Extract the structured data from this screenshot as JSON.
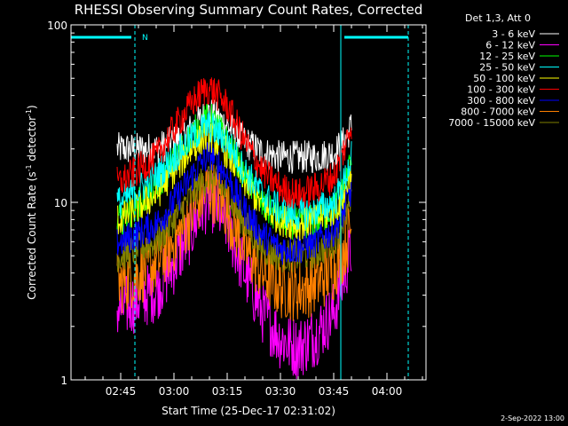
{
  "chart_data": {
    "type": "line",
    "title": "RHESSI Observing Summary Count Rates, Corrected",
    "xlabel": "Start Time (25-Dec-17 02:31:02)",
    "ylabel": "Corrected Count Rate (s⁻¹ detector⁻¹)",
    "ylabel_parts": {
      "main": "Corrected Count Rate (s",
      "sup1": "-1",
      "mid": " detector",
      "sup2": "-1",
      "end": ")"
    },
    "yscale": "log",
    "ylim": [
      1,
      100
    ],
    "xlim": [
      "02:31",
      "04:11"
    ],
    "x_ticks": [
      "02:45",
      "03:00",
      "03:15",
      "03:30",
      "03:45",
      "04:00"
    ],
    "y_ticks": [
      "1",
      "10",
      "100"
    ],
    "legend_title": "Det 1,3, Att 0",
    "legend_placement": "top-right outside",
    "data_window": {
      "start": "02:44",
      "end": "03:50"
    },
    "flags": {
      "bar_color": "#00ffff",
      "bars": [
        {
          "start": "02:31",
          "end": "02:48"
        },
        {
          "start": "03:48",
          "end": "04:06"
        }
      ],
      "night_solid": [
        "02:31",
        "03:47"
      ],
      "night_dashed": [
        "02:49",
        "04:06"
      ],
      "label": "N",
      "label_at": "02:50"
    },
    "timestamp": "2-Sep-2022 13:00",
    "series": [
      {
        "name": "3 - 6 keV",
        "color": "#ffffff",
        "x": [
          "02:45",
          "02:55",
          "03:00",
          "03:05",
          "03:08",
          "03:10",
          "03:12",
          "03:15",
          "03:20",
          "03:25",
          "03:30",
          "03:35",
          "03:40",
          "03:45",
          "03:48",
          "03:50"
        ],
        "values": [
          20,
          20,
          22,
          26,
          30,
          32,
          30,
          27,
          22,
          19,
          18,
          18,
          18,
          19,
          22,
          27
        ]
      },
      {
        "name": "6 - 12 keV",
        "color": "#ff00ff",
        "x": [
          "02:45",
          "02:55",
          "03:00",
          "03:05",
          "03:08",
          "03:10",
          "03:12",
          "03:15",
          "03:20",
          "03:25",
          "03:30",
          "03:35",
          "03:40",
          "03:45",
          "03:48",
          "03:50"
        ],
        "values": [
          2.5,
          3.2,
          4.5,
          7,
          9.5,
          10.5,
          9.5,
          7.5,
          4,
          2.4,
          1.7,
          1.5,
          1.8,
          2.4,
          4,
          5.5
        ]
      },
      {
        "name": "12 - 25 keV",
        "color": "#00ff00",
        "x": [
          "02:45",
          "02:55",
          "03:00",
          "03:05",
          "03:08",
          "03:10",
          "03:12",
          "03:15",
          "03:20",
          "03:25",
          "03:30",
          "03:35",
          "03:40",
          "03:45",
          "03:48",
          "03:50"
        ],
        "values": [
          8,
          12,
          17,
          24,
          28,
          30,
          27,
          22,
          14,
          9.5,
          8,
          7.5,
          8,
          9,
          12,
          18
        ]
      },
      {
        "name": "25 - 50 keV",
        "color": "#00ffff",
        "x": [
          "02:45",
          "02:55",
          "03:00",
          "03:05",
          "03:08",
          "03:10",
          "03:12",
          "03:15",
          "03:20",
          "03:25",
          "03:30",
          "03:35",
          "03:40",
          "03:45",
          "03:48",
          "03:50"
        ],
        "values": [
          10,
          14,
          18,
          23,
          26,
          27,
          25,
          22,
          15,
          11,
          9,
          8.5,
          9,
          10,
          13,
          18
        ]
      },
      {
        "name": "50 - 100 keV",
        "color": "#ffff00",
        "x": [
          "02:45",
          "02:55",
          "03:00",
          "03:05",
          "03:08",
          "03:10",
          "03:12",
          "03:15",
          "03:20",
          "03:25",
          "03:30",
          "03:35",
          "03:40",
          "03:45",
          "03:48",
          "03:50"
        ],
        "values": [
          8,
          11,
          15,
          20,
          23,
          24,
          22,
          19,
          13,
          9.5,
          8,
          7.5,
          8,
          9,
          11,
          16
        ]
      },
      {
        "name": "100 - 300 keV",
        "color": "#ff0000",
        "x": [
          "02:45",
          "02:55",
          "03:00",
          "03:05",
          "03:08",
          "03:10",
          "03:12",
          "03:15",
          "03:20",
          "03:25",
          "03:30",
          "03:35",
          "03:40",
          "03:45",
          "03:48",
          "03:50"
        ],
        "values": [
          13,
          18,
          26,
          36,
          42,
          44,
          41,
          35,
          22,
          15,
          12,
          11,
          12,
          14,
          20,
          28
        ]
      },
      {
        "name": "300 - 800 keV",
        "color": "#0000ff",
        "x": [
          "02:45",
          "02:55",
          "03:00",
          "03:05",
          "03:08",
          "03:10",
          "03:12",
          "03:15",
          "03:20",
          "03:25",
          "03:30",
          "03:35",
          "03:40",
          "03:45",
          "03:48",
          "03:50"
        ],
        "values": [
          6,
          7.5,
          10,
          14,
          17,
          19,
          17,
          14,
          9,
          6.5,
          5.5,
          5.5,
          6,
          7,
          9,
          12
        ]
      },
      {
        "name": "800 - 7000 keV",
        "color": "#ff8000",
        "x": [
          "02:45",
          "02:55",
          "03:00",
          "03:05",
          "03:08",
          "03:10",
          "03:12",
          "03:15",
          "03:20",
          "03:25",
          "03:30",
          "03:35",
          "03:40",
          "03:45",
          "03:48",
          "03:50"
        ],
        "values": [
          3.5,
          4.5,
          6,
          8.5,
          11,
          12,
          11,
          9,
          5.5,
          4,
          3.3,
          3.2,
          3.5,
          4.2,
          5.5,
          7.5
        ]
      },
      {
        "name": "7000 - 15000 keV",
        "color": "#808000",
        "x": [
          "02:45",
          "02:55",
          "03:00",
          "03:05",
          "03:08",
          "03:10",
          "03:12",
          "03:15",
          "03:20",
          "03:25",
          "03:30",
          "03:35",
          "03:40",
          "03:45",
          "03:48",
          "03:50"
        ],
        "values": [
          5,
          6,
          8,
          11,
          13,
          14,
          13,
          11,
          7.5,
          5.5,
          5,
          5,
          5.2,
          6,
          8,
          10
        ]
      }
    ]
  }
}
